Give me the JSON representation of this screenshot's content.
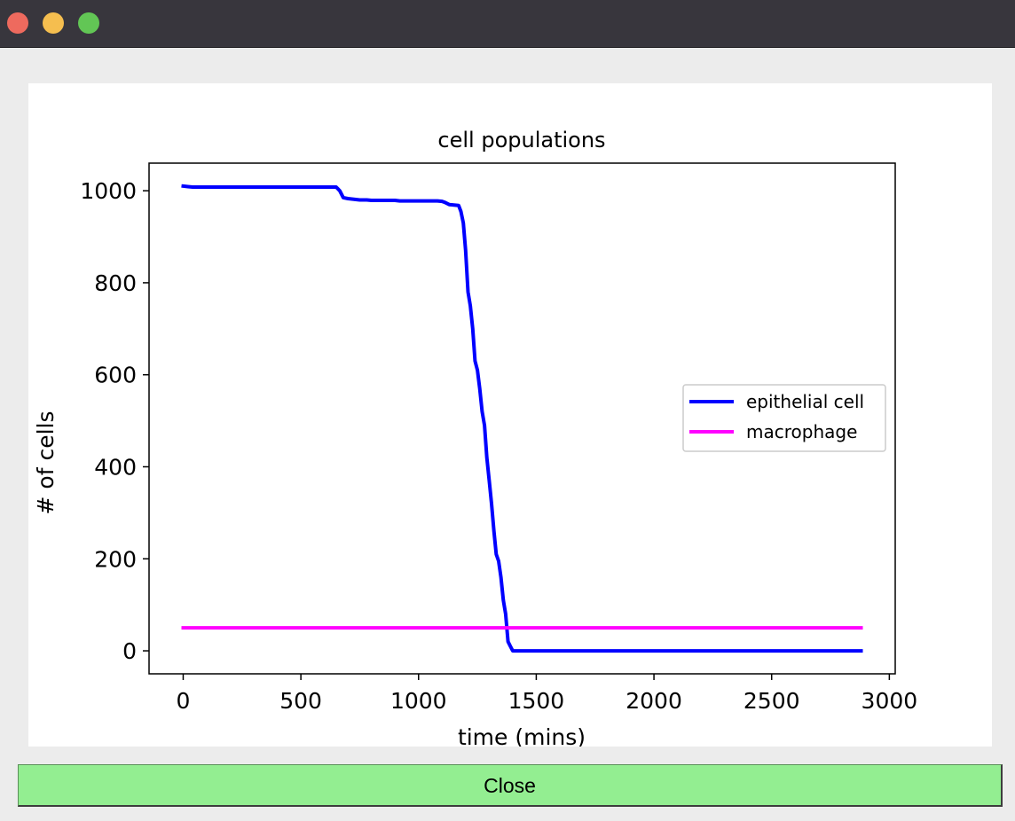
{
  "window": {
    "buttons": [
      "close",
      "minimize",
      "zoom"
    ]
  },
  "close_button": {
    "label": "Close"
  },
  "chart_data": {
    "type": "line",
    "title": "cell populations",
    "xlabel": "time (mins)",
    "ylabel": "# of cells",
    "xlim": [
      -145,
      3025
    ],
    "ylim": [
      -50,
      1060
    ],
    "xticks": [
      0,
      500,
      1000,
      1500,
      2000,
      2500,
      3000
    ],
    "yticks": [
      0,
      200,
      400,
      600,
      800,
      1000
    ],
    "legend_position": "center-right",
    "series": [
      {
        "name": "epithelial cell",
        "color": "#0000ff",
        "x": [
          0,
          20,
          40,
          100,
          200,
          300,
          400,
          500,
          600,
          650,
          665,
          680,
          700,
          750,
          780,
          800,
          850,
          900,
          920,
          940,
          1000,
          1050,
          1080,
          1100,
          1110,
          1130,
          1150,
          1170,
          1180,
          1190,
          1200,
          1210,
          1220,
          1230,
          1240,
          1250,
          1260,
          1270,
          1280,
          1290,
          1300,
          1310,
          1320,
          1330,
          1340,
          1350,
          1360,
          1370,
          1380,
          1390,
          1400,
          1410,
          1420,
          1500,
          2000,
          2500,
          2880
        ],
        "y": [
          1010,
          1009,
          1008,
          1008,
          1008,
          1008,
          1008,
          1008,
          1008,
          1008,
          1000,
          985,
          983,
          980,
          980,
          979,
          979,
          979,
          978,
          978,
          978,
          978,
          978,
          977,
          975,
          970,
          969,
          968,
          955,
          930,
          870,
          780,
          750,
          700,
          630,
          610,
          570,
          520,
          490,
          420,
          370,
          320,
          260,
          210,
          195,
          160,
          110,
          80,
          20,
          10,
          0,
          0,
          0,
          0,
          0,
          0,
          0
        ]
      },
      {
        "name": "macrophage",
        "color": "#ff00ff",
        "x": [
          0,
          2880
        ],
        "y": [
          50,
          50
        ]
      }
    ]
  }
}
